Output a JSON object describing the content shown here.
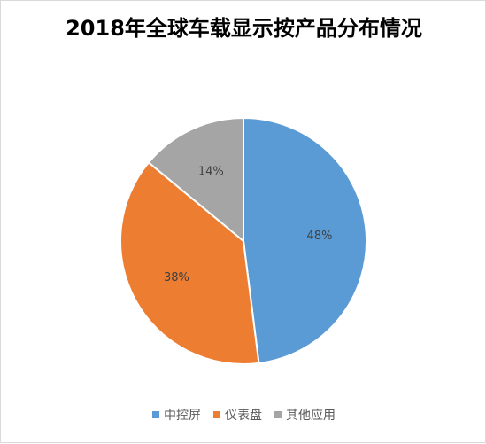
{
  "chart_data": {
    "type": "pie",
    "title": "2018年全球车载显示按产品分布情况",
    "categories": [
      "中控屏",
      "仪表盘",
      "其他应用"
    ],
    "values": [
      48,
      38,
      14
    ],
    "labels": [
      "48%",
      "38%",
      "14%"
    ],
    "colors": [
      "#5b9bd5",
      "#ed7d31",
      "#a5a5a5"
    ],
    "legend_position": "bottom",
    "start_angle_deg": 0,
    "direction": "clockwise"
  }
}
